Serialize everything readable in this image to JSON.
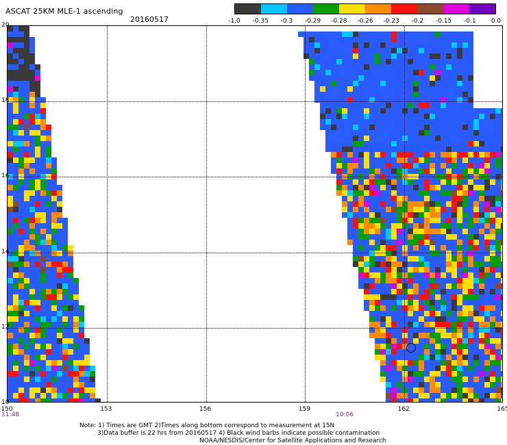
{
  "header": {
    "title": "ASCAT 25KM MLE-1 ascending",
    "date": "20160517"
  },
  "legend": {
    "colors": [
      "#3a3a3a",
      "#00c8ff",
      "#2a5bff",
      "#00a000",
      "#ffe000",
      "#ff8c00",
      "#ff1010",
      "#8b4a2b",
      "#e000e0",
      "#7000c0"
    ],
    "labels": [
      "-1.0",
      "-0.35",
      "-0.3",
      "-0.29",
      "-0.28",
      "-0.26",
      "-0.23",
      "-0.2",
      "-0.15",
      "-0.1",
      "0.0"
    ]
  },
  "map": {
    "lat_labels": [
      "20",
      "18",
      "16",
      "14",
      "12",
      "10"
    ],
    "lon_labels": [
      "150",
      "153",
      "156",
      "159",
      "162",
      "165"
    ],
    "times": {
      "left": "11:48",
      "right": "10:06"
    },
    "lon_range": [
      150,
      165
    ],
    "lat_range": [
      10,
      20
    ]
  },
  "notes": {
    "line1": "Note: 1) Times are GMT 2)Times along bottom correspond to measurement at 15N",
    "line2": "3)Data buffer is 22 hrs from 20160517 4) Black wind barbs indicate possible contamination",
    "line3": "NOAA/NESDIS/Center for Satellite Applications and Research"
  }
}
